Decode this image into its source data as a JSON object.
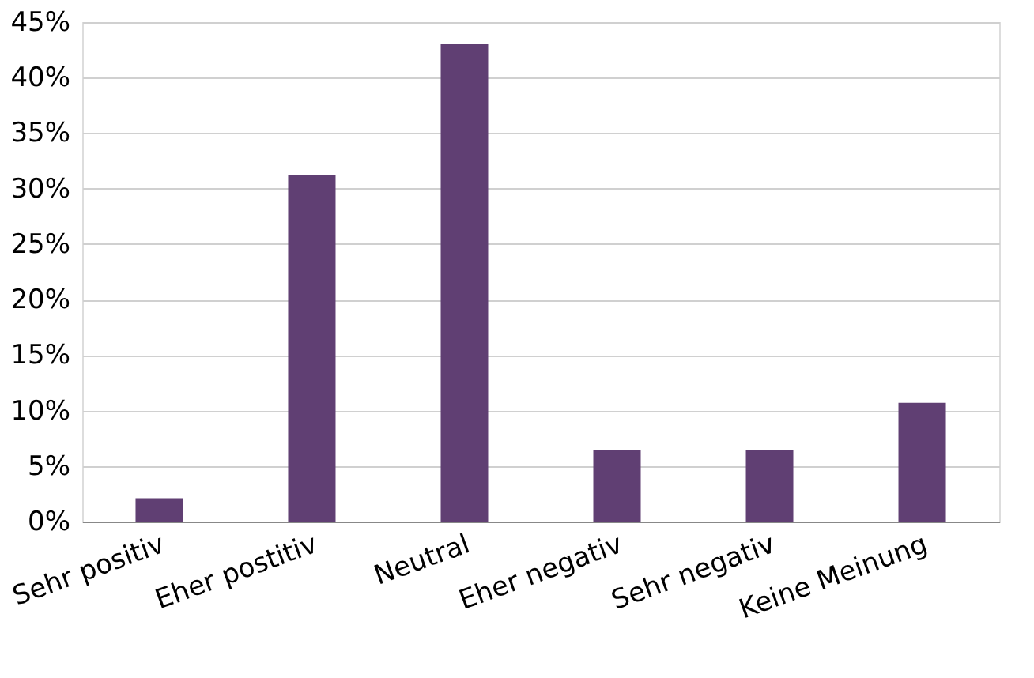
{
  "chart_data": {
    "type": "bar",
    "categories": [
      "Sehr positiv",
      "Eher postitiv",
      "Neutral",
      "Eher negativ",
      "Sehr negativ",
      "Keine Meinung"
    ],
    "values": [
      2.1,
      31.2,
      43.0,
      6.4,
      6.4,
      10.7
    ],
    "color": "#603f73",
    "ylim": [
      0,
      45
    ],
    "yticks": [
      {
        "value": 0,
        "label": "0%"
      },
      {
        "value": 5,
        "label": "5%"
      },
      {
        "value": 10,
        "label": "10%"
      },
      {
        "value": 15,
        "label": "15%"
      },
      {
        "value": 20,
        "label": "20%"
      },
      {
        "value": 25,
        "label": "25%"
      },
      {
        "value": 30,
        "label": "30%"
      },
      {
        "value": 35,
        "label": "35%"
      },
      {
        "value": 40,
        "label": "40%"
      },
      {
        "value": 45,
        "label": "45%"
      }
    ],
    "grid": "y"
  }
}
